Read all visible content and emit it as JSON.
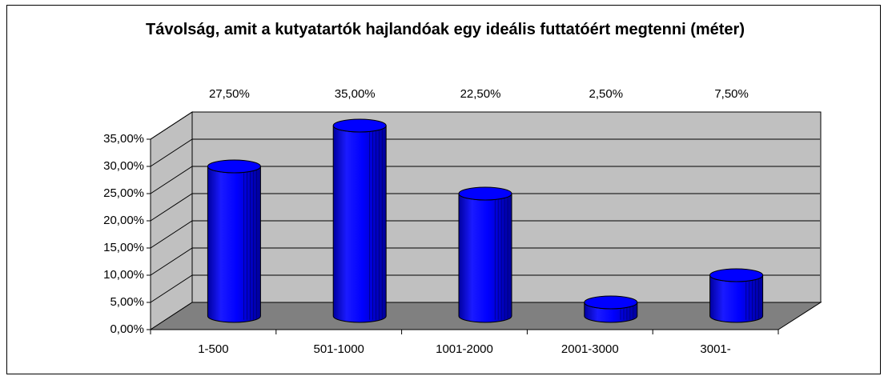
{
  "chart_data": {
    "type": "bar",
    "title": "Távolság, amit a kutyatartók hajlandóak egy ideális futtatóért megtenni (méter)",
    "categories": [
      "1-500",
      "501-1000",
      "1001-2000",
      "2001-3000",
      "3001-"
    ],
    "values": [
      27.5,
      35,
      22.5,
      2.5,
      7.5
    ],
    "value_labels": [
      "27,50%",
      "35,00%",
      "22,50%",
      "2,50%",
      "7,50%"
    ],
    "color": "#0000ff",
    "ylim": [
      0,
      35
    ],
    "yticks": [
      {
        "value": 0,
        "label": "0,00%"
      },
      {
        "value": 5,
        "label": "5,00%"
      },
      {
        "value": 10,
        "label": "10,00%"
      },
      {
        "value": 15,
        "label": "15,00%"
      },
      {
        "value": 20,
        "label": "20,00%"
      },
      {
        "value": 25,
        "label": "25,00%"
      },
      {
        "value": 30,
        "label": "30,00%"
      },
      {
        "value": 35,
        "label": "35,00%"
      }
    ],
    "grid": true
  }
}
